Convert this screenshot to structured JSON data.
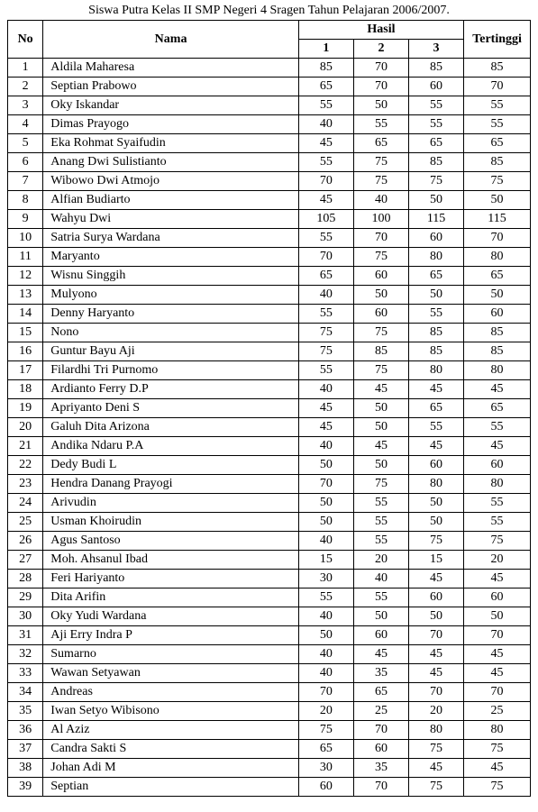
{
  "caption": "Siswa Putra Kelas II SMP Negeri 4 Sragen Tahun Pelajaran 2006/2007.",
  "columns": {
    "no": "No",
    "nama": "Nama",
    "hasil": "Hasil",
    "hasil_sub": [
      "1",
      "2",
      "3"
    ],
    "tertinggi": "Tertinggi"
  },
  "rows": [
    {
      "no": "1",
      "nama": "Aldila Maharesa",
      "h": [
        "85",
        "70",
        "85"
      ],
      "tt": "85"
    },
    {
      "no": "2",
      "nama": "Septian Prabowo",
      "h": [
        "65",
        "70",
        "60"
      ],
      "tt": "70"
    },
    {
      "no": "3",
      "nama": "Oky Iskandar",
      "h": [
        "55",
        "50",
        "55"
      ],
      "tt": "55"
    },
    {
      "no": "4",
      "nama": "Dimas Prayogo",
      "h": [
        "40",
        "55",
        "55"
      ],
      "tt": "55"
    },
    {
      "no": "5",
      "nama": "Eka Rohmat Syaifudin",
      "h": [
        "45",
        "65",
        "65"
      ],
      "tt": "65"
    },
    {
      "no": "6",
      "nama": "Anang Dwi Sulistianto",
      "h": [
        "55",
        "75",
        "85"
      ],
      "tt": "85"
    },
    {
      "no": "7",
      "nama": "Wibowo Dwi Atmojo",
      "h": [
        "70",
        "75",
        "75"
      ],
      "tt": "75"
    },
    {
      "no": "8",
      "nama": "Alfian Budiarto",
      "h": [
        "45",
        "40",
        "50"
      ],
      "tt": "50"
    },
    {
      "no": "9",
      "nama": "Wahyu Dwi",
      "h": [
        "105",
        "100",
        "115"
      ],
      "tt": "115"
    },
    {
      "no": "10",
      "nama": "Satria Surya Wardana",
      "h": [
        "55",
        "70",
        "60"
      ],
      "tt": "70"
    },
    {
      "no": "11",
      "nama": "Maryanto",
      "h": [
        "70",
        "75",
        "80"
      ],
      "tt": "80"
    },
    {
      "no": "12",
      "nama": "Wisnu Singgih",
      "h": [
        "65",
        "60",
        "65"
      ],
      "tt": "65"
    },
    {
      "no": "13",
      "nama": "Mulyono",
      "h": [
        "40",
        "50",
        "50"
      ],
      "tt": "50"
    },
    {
      "no": "14",
      "nama": "Denny Haryanto",
      "h": [
        "55",
        "60",
        "55"
      ],
      "tt": "60"
    },
    {
      "no": "15",
      "nama": "Nono",
      "h": [
        "75",
        "75",
        "85"
      ],
      "tt": "85"
    },
    {
      "no": "16",
      "nama": "Guntur Bayu Aji",
      "h": [
        "75",
        "85",
        "85"
      ],
      "tt": "85"
    },
    {
      "no": "17",
      "nama": "Filardhi Tri Purnomo",
      "h": [
        "55",
        "75",
        "80"
      ],
      "tt": "80"
    },
    {
      "no": "18",
      "nama": "Ardianto Ferry D.P",
      "h": [
        "40",
        "45",
        "45"
      ],
      "tt": "45"
    },
    {
      "no": "19",
      "nama": "Apriyanto Deni S",
      "h": [
        "45",
        "50",
        "65"
      ],
      "tt": "65"
    },
    {
      "no": "20",
      "nama": "Galuh Dita Arizona",
      "h": [
        "45",
        "50",
        "55"
      ],
      "tt": "55"
    },
    {
      "no": "21",
      "nama": "Andika Ndaru P.A",
      "h": [
        "40",
        "45",
        "45"
      ],
      "tt": "45"
    },
    {
      "no": "22",
      "nama": "Dedy Budi L",
      "h": [
        "50",
        "50",
        "60"
      ],
      "tt": "60"
    },
    {
      "no": "23",
      "nama": "Hendra Danang Prayogi",
      "h": [
        "70",
        "75",
        "80"
      ],
      "tt": "80"
    },
    {
      "no": "24",
      "nama": "Arivudin",
      "h": [
        "50",
        "55",
        "50"
      ],
      "tt": "55"
    },
    {
      "no": "25",
      "nama": "Usman Khoirudin",
      "h": [
        "50",
        "55",
        "50"
      ],
      "tt": "55"
    },
    {
      "no": "26",
      "nama": "Agus Santoso",
      "h": [
        "40",
        "55",
        "75"
      ],
      "tt": "75"
    },
    {
      "no": "27",
      "nama": "Moh. Ahsanul Ibad",
      "h": [
        "15",
        "20",
        "15"
      ],
      "tt": "20"
    },
    {
      "no": "28",
      "nama": "Feri Hariyanto",
      "h": [
        "30",
        "40",
        "45"
      ],
      "tt": "45"
    },
    {
      "no": "29",
      "nama": "Dita Arifin",
      "h": [
        "55",
        "55",
        "60"
      ],
      "tt": "60"
    },
    {
      "no": "30",
      "nama": "Oky Yudi Wardana",
      "h": [
        "40",
        "50",
        "50"
      ],
      "tt": "50"
    },
    {
      "no": "31",
      "nama": "Aji Erry Indra P",
      "h": [
        "50",
        "60",
        "70"
      ],
      "tt": "70"
    },
    {
      "no": "32",
      "nama": "Sumarno",
      "h": [
        "40",
        "45",
        "45"
      ],
      "tt": "45"
    },
    {
      "no": "33",
      "nama": "Wawan Setyawan",
      "h": [
        "40",
        "35",
        "45"
      ],
      "tt": "45"
    },
    {
      "no": "34",
      "nama": "Andreas",
      "h": [
        "70",
        "65",
        "70"
      ],
      "tt": "70"
    },
    {
      "no": "35",
      "nama": "Iwan Setyo Wibisono",
      "h": [
        "20",
        "25",
        "20"
      ],
      "tt": "25"
    },
    {
      "no": "36",
      "nama": "Al Aziz",
      "h": [
        "75",
        "70",
        "80"
      ],
      "tt": "80"
    },
    {
      "no": "37",
      "nama": "Candra Sakti S",
      "h": [
        "65",
        "60",
        "75"
      ],
      "tt": "75"
    },
    {
      "no": "38",
      "nama": "Johan Adi M",
      "h": [
        "30",
        "35",
        "45"
      ],
      "tt": "45"
    },
    {
      "no": "39",
      "nama": "Septian",
      "h": [
        "60",
        "70",
        "75"
      ],
      "tt": "75"
    }
  ]
}
